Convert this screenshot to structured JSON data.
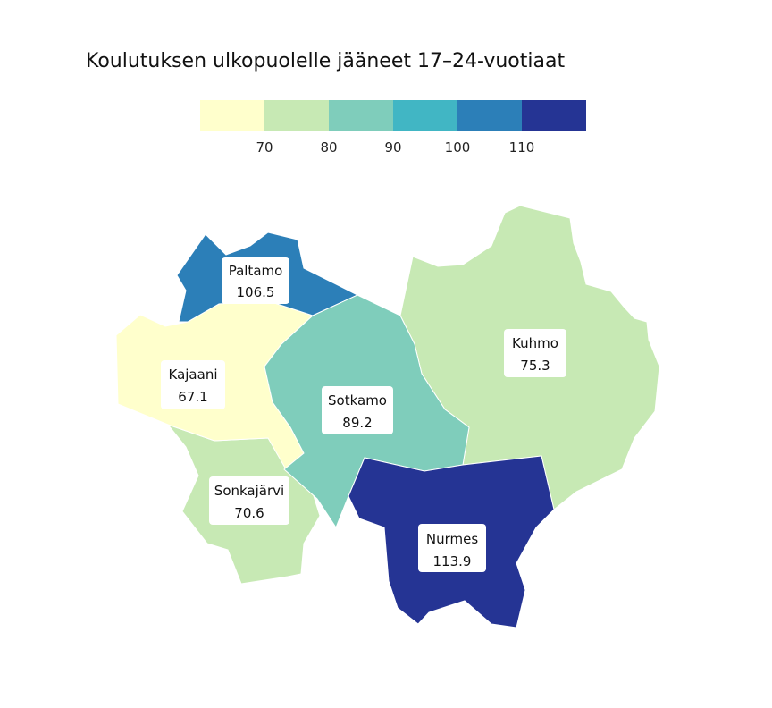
{
  "chart_data": {
    "type": "choropleth",
    "title": "Koulutuksen ulkopuolelle jääneet 17–24-vuotiaat",
    "legend": {
      "bins": [
        {
          "color": "#ffffcc"
        },
        {
          "color": "#c7e9b4"
        },
        {
          "color": "#7fcdbb"
        },
        {
          "color": "#41b6c4"
        },
        {
          "color": "#2c7fb8"
        },
        {
          "color": "#253494"
        }
      ],
      "ticks": [
        "70",
        "80",
        "90",
        "100",
        "110"
      ],
      "placement": "top"
    },
    "regions": [
      {
        "name": "Paltamo",
        "value": "106.5",
        "color": "#2c7fb8"
      },
      {
        "name": "Kajaani",
        "value": "67.1",
        "color": "#ffffcc"
      },
      {
        "name": "Sotkamo",
        "value": "89.2",
        "color": "#7fcdbb"
      },
      {
        "name": "Kuhmo",
        "value": "75.3",
        "color": "#c7e9b4"
      },
      {
        "name": "Sonkajärvi",
        "value": "70.6",
        "color": "#c7e9b4"
      },
      {
        "name": "Nurmes",
        "value": "113.9",
        "color": "#253494"
      }
    ]
  }
}
